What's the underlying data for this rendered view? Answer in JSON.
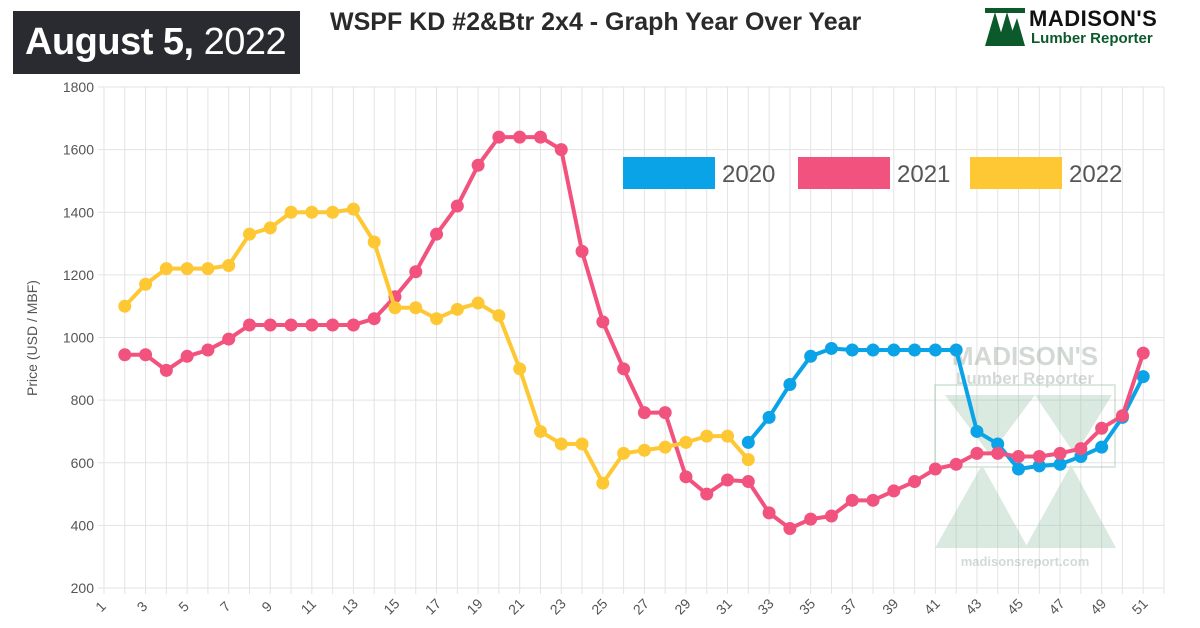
{
  "header": {
    "date_main": "August 5,",
    "date_year": "2022",
    "title": "WSPF KD #2&Btr 2x4 - Graph Year Over Year",
    "logo_line1": "MADISON'S",
    "logo_line2": "Lumber Reporter"
  },
  "watermark": {
    "line1": "MADISON'S",
    "line2": "Lumber Reporter",
    "url": "madisonsreport.com"
  },
  "colors": {
    "2020": "#0aa3e8",
    "2021": "#f2527e",
    "2022": "#fdc834",
    "grid": "#e3e3e3",
    "axis_text": "#555555"
  },
  "chart_data": {
    "type": "line",
    "title": "WSPF KD #2&Btr 2x4 - Graph Year Over Year",
    "xlabel": "",
    "ylabel": "Price (USD / MBF)",
    "xlim": [
      1,
      52
    ],
    "ylim": [
      200,
      1800
    ],
    "y_ticks": [
      200,
      400,
      600,
      800,
      1000,
      1200,
      1400,
      1600,
      1800
    ],
    "x_ticks": [
      1,
      3,
      5,
      7,
      9,
      11,
      13,
      15,
      17,
      19,
      21,
      23,
      25,
      27,
      29,
      31,
      33,
      35,
      37,
      39,
      41,
      43,
      45,
      47,
      49,
      51
    ],
    "grid": true,
    "legend_position": "top-right",
    "series": [
      {
        "name": "2020",
        "color": "#0aa3e8",
        "points": [
          [
            32,
            665
          ],
          [
            33,
            745
          ],
          [
            34,
            850
          ],
          [
            35,
            940
          ],
          [
            36,
            965
          ],
          [
            37,
            960
          ],
          [
            38,
            960
          ],
          [
            39,
            960
          ],
          [
            40,
            960
          ],
          [
            41,
            960
          ],
          [
            42,
            960
          ],
          [
            43,
            700
          ],
          [
            44,
            660
          ],
          [
            45,
            580
          ],
          [
            46,
            590
          ],
          [
            47,
            595
          ],
          [
            48,
            620
          ],
          [
            49,
            650
          ],
          [
            50,
            745
          ],
          [
            51,
            875
          ]
        ]
      },
      {
        "name": "2021",
        "color": "#f2527e",
        "points": [
          [
            2,
            945
          ],
          [
            3,
            945
          ],
          [
            4,
            895
          ],
          [
            5,
            940
          ],
          [
            6,
            960
          ],
          [
            7,
            995
          ],
          [
            8,
            1040
          ],
          [
            9,
            1040
          ],
          [
            10,
            1040
          ],
          [
            11,
            1040
          ],
          [
            12,
            1040
          ],
          [
            13,
            1040
          ],
          [
            14,
            1060
          ],
          [
            15,
            1130
          ],
          [
            16,
            1210
          ],
          [
            17,
            1330
          ],
          [
            18,
            1420
          ],
          [
            19,
            1550
          ],
          [
            20,
            1640
          ],
          [
            21,
            1640
          ],
          [
            22,
            1640
          ],
          [
            23,
            1600
          ],
          [
            24,
            1275
          ],
          [
            25,
            1050
          ],
          [
            26,
            900
          ],
          [
            27,
            760
          ],
          [
            28,
            760
          ],
          [
            29,
            555
          ],
          [
            30,
            500
          ],
          [
            31,
            545
          ],
          [
            32,
            540
          ],
          [
            33,
            440
          ],
          [
            34,
            390
          ],
          [
            35,
            420
          ],
          [
            36,
            430
          ],
          [
            37,
            480
          ],
          [
            38,
            480
          ],
          [
            39,
            510
          ],
          [
            40,
            540
          ],
          [
            41,
            580
          ],
          [
            42,
            595
          ],
          [
            43,
            630
          ],
          [
            44,
            630
          ],
          [
            45,
            620
          ],
          [
            46,
            620
          ],
          [
            47,
            630
          ],
          [
            48,
            645
          ],
          [
            49,
            710
          ],
          [
            50,
            750
          ],
          [
            51,
            950
          ]
        ]
      },
      {
        "name": "2022",
        "color": "#fdc834",
        "points": [
          [
            2,
            1100
          ],
          [
            3,
            1170
          ],
          [
            4,
            1220
          ],
          [
            5,
            1220
          ],
          [
            6,
            1220
          ],
          [
            7,
            1230
          ],
          [
            8,
            1330
          ],
          [
            9,
            1350
          ],
          [
            10,
            1400
          ],
          [
            11,
            1400
          ],
          [
            12,
            1400
          ],
          [
            13,
            1410
          ],
          [
            14,
            1305
          ],
          [
            15,
            1095
          ],
          [
            16,
            1095
          ],
          [
            17,
            1060
          ],
          [
            18,
            1090
          ],
          [
            19,
            1110
          ],
          [
            20,
            1070
          ],
          [
            21,
            900
          ],
          [
            22,
            700
          ],
          [
            23,
            660
          ],
          [
            24,
            660
          ],
          [
            25,
            535
          ],
          [
            26,
            630
          ],
          [
            27,
            640
          ],
          [
            28,
            650
          ],
          [
            29,
            665
          ],
          [
            30,
            685
          ],
          [
            31,
            685
          ],
          [
            32,
            610
          ]
        ]
      }
    ]
  }
}
